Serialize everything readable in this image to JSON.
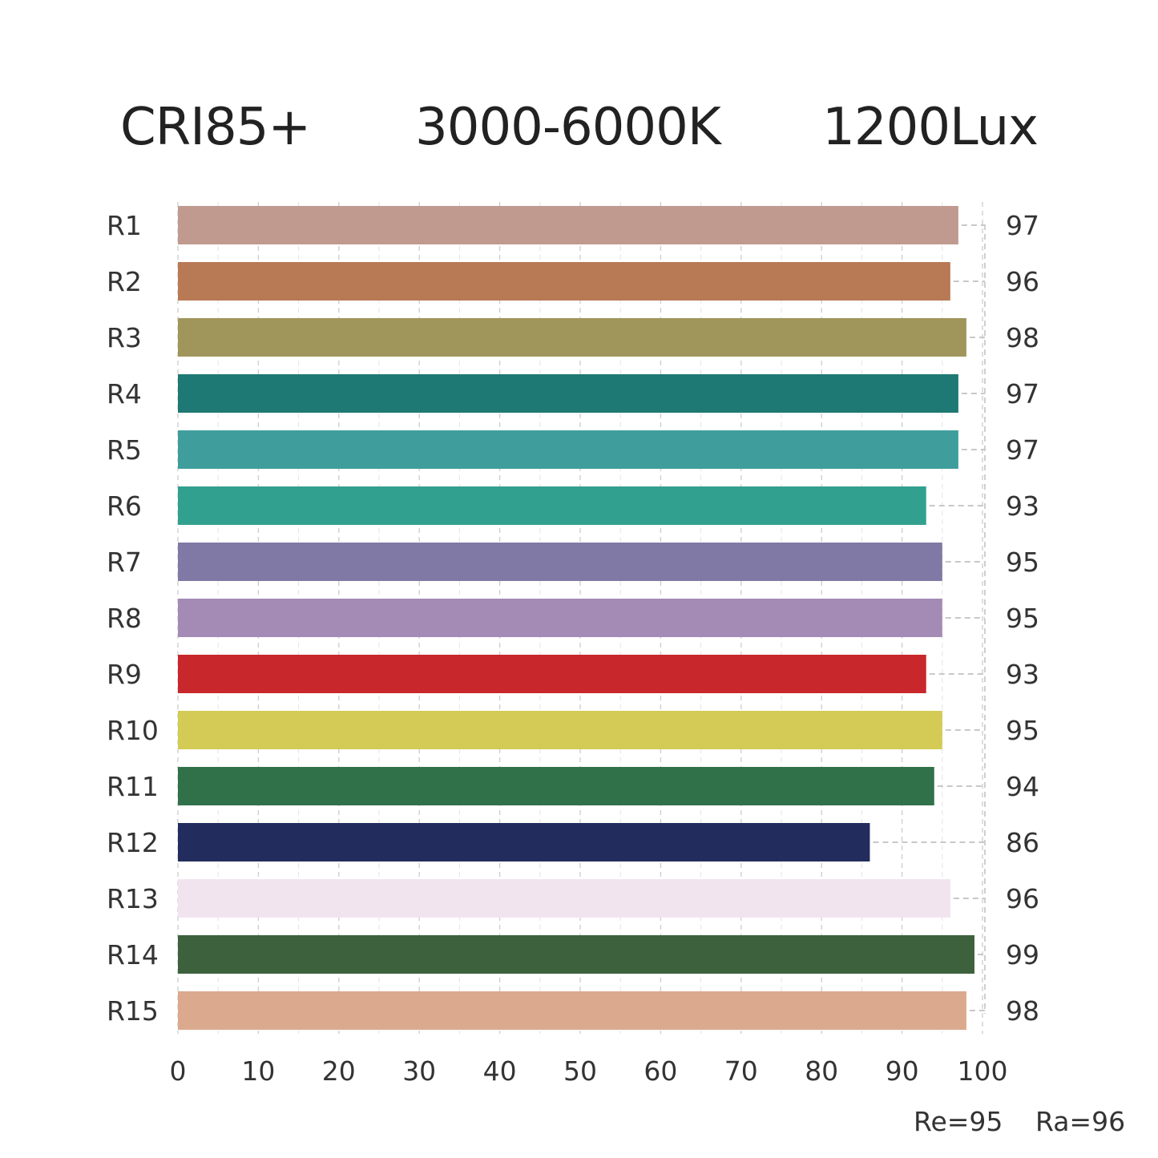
{
  "header": {
    "cri": "CRI85+",
    "cct": "3000-6000K",
    "lux": "1200Lux"
  },
  "footer": {
    "re": "Re=95",
    "ra": "Ra=96"
  },
  "chart_data": {
    "type": "bar",
    "orientation": "horizontal",
    "categories": [
      "R1",
      "R2",
      "R3",
      "R4",
      "R5",
      "R6",
      "R7",
      "R8",
      "R9",
      "R10",
      "R11",
      "R12",
      "R13",
      "R14",
      "R15"
    ],
    "values": [
      97,
      96,
      98,
      97,
      97,
      93,
      95,
      95,
      93,
      95,
      94,
      86,
      96,
      99,
      98
    ],
    "colors": [
      "#c09a8f",
      "#b87a55",
      "#a0965c",
      "#1e7873",
      "#3f9e9c",
      "#32a08f",
      "#8079a5",
      "#a48bb6",
      "#c8282b",
      "#d3cb56",
      "#30714a",
      "#222c5d",
      "#f1e4ef",
      "#3c613c",
      "#dba98e"
    ],
    "xlim": [
      0,
      100
    ],
    "xticks": [
      0,
      10,
      20,
      30,
      40,
      50,
      60,
      70,
      80,
      90,
      100
    ],
    "grid": true,
    "value_labels": "right"
  }
}
